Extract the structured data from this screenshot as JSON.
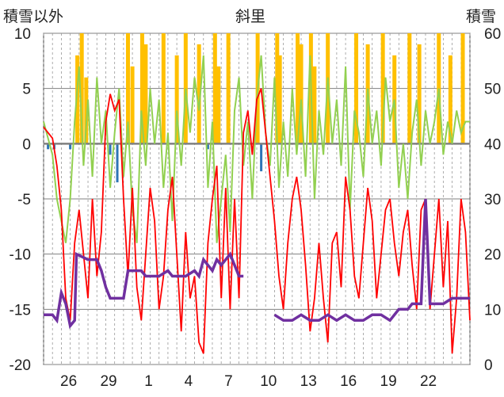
{
  "chart_data": {
    "type": "line",
    "title": "斜里",
    "ylabel_left": "積雪以外",
    "ylabel_right": "積雪",
    "ylim_left": [
      -20,
      10
    ],
    "ylim_right": [
      0,
      60
    ],
    "yticks_left": [
      "10",
      "5",
      "0",
      "-5",
      "-10",
      "-15",
      "-20"
    ],
    "yticks_right": [
      "60",
      "50",
      "40",
      "30",
      "20",
      "10",
      "0"
    ],
    "xtick_labels": [
      "26",
      "29",
      "1",
      "4",
      "7",
      "10",
      "13",
      "16",
      "19",
      "22"
    ],
    "x_range_days": [
      0,
      30
    ],
    "grid": true,
    "legend": "none",
    "colors": {
      "temperature": "#ff0000",
      "wind": "#92d050",
      "precipitation_yellow": "#ffc000",
      "precipitation_blue": "#2e75b6",
      "snow_depth": "#7030a0",
      "gridline": "#808080",
      "zero_line": "#808080"
    },
    "series": [
      {
        "axis": "left",
        "values_by_day": [
          [
            0,
            1.5
          ],
          [
            1,
            0.5
          ],
          [
            1.5,
            -2
          ],
          [
            2,
            -6
          ],
          [
            2.5,
            -14
          ],
          [
            3,
            -16
          ],
          [
            3.5,
            -9
          ],
          [
            4,
            -6
          ],
          [
            5,
            -14
          ],
          [
            5.5,
            -5
          ],
          [
            6,
            -12
          ],
          [
            6.5,
            -8
          ],
          [
            7,
            2
          ],
          [
            7.5,
            4.5
          ],
          [
            8,
            3
          ],
          [
            8.5,
            4
          ],
          [
            9,
            -5
          ],
          [
            9.5,
            -12
          ],
          [
            10,
            -4
          ],
          [
            10.5,
            -13
          ],
          [
            11,
            -16
          ],
          [
            11.5,
            -10
          ],
          [
            12,
            -4
          ],
          [
            12.5,
            -7
          ],
          [
            13,
            -15
          ],
          [
            13.5,
            -12
          ],
          [
            14,
            -6
          ],
          [
            14.5,
            -3
          ],
          [
            15,
            -10
          ],
          [
            15.5,
            -17
          ],
          [
            16,
            -8
          ],
          [
            16.5,
            -14
          ],
          [
            17,
            -12
          ],
          [
            17.5,
            -18
          ],
          [
            18,
            -19
          ],
          [
            18.5,
            -9
          ],
          [
            19,
            -5
          ],
          [
            19.5,
            -2
          ],
          [
            20,
            -14
          ],
          [
            20.5,
            -4
          ],
          [
            21,
            -15
          ],
          [
            21.5,
            -5
          ],
          [
            22,
            -14
          ],
          [
            22.5,
            1
          ],
          [
            23,
            3
          ],
          [
            23.5,
            -1
          ],
          [
            24,
            4
          ],
          [
            24.5,
            5
          ],
          [
            25,
            1
          ],
          [
            25.5,
            -3
          ],
          [
            26,
            -7
          ],
          [
            26.5,
            -12
          ],
          [
            27,
            -15
          ],
          [
            27.5,
            -9
          ],
          [
            28,
            -5
          ],
          [
            28.5,
            -3
          ],
          [
            29,
            -6
          ],
          [
            29.5,
            -11
          ],
          [
            30,
            -17
          ],
          [
            30.5,
            -14
          ],
          [
            31,
            -9
          ],
          [
            31.5,
            -14
          ],
          [
            32,
            -18
          ],
          [
            32.5,
            -9
          ],
          [
            33,
            -8
          ],
          [
            33.5,
            -13
          ],
          [
            34,
            -3
          ],
          [
            34.5,
            -6
          ],
          [
            35,
            -12
          ],
          [
            35.5,
            -14
          ],
          [
            36,
            -9
          ],
          [
            36.5,
            -4
          ],
          [
            37,
            -7
          ],
          [
            37.5,
            -14
          ],
          [
            38,
            -10
          ],
          [
            38.5,
            -6
          ],
          [
            39,
            -5
          ],
          [
            39.5,
            -9
          ],
          [
            40,
            -12
          ],
          [
            40.5,
            -8
          ],
          [
            41,
            -6
          ],
          [
            41.5,
            -11
          ],
          [
            42,
            -15
          ],
          [
            42.5,
            -6
          ],
          [
            43,
            -5
          ],
          [
            43.5,
            -15
          ],
          [
            44,
            -10
          ],
          [
            44.5,
            -5
          ],
          [
            45,
            -13
          ],
          [
            45.5,
            -7
          ],
          [
            46,
            -19
          ],
          [
            46.5,
            -14
          ],
          [
            47,
            -5
          ],
          [
            47.5,
            -8
          ],
          [
            48,
            -16
          ]
        ]
      },
      {
        "axis": "left",
        "values_by_day": [
          [
            0,
            2
          ],
          [
            1,
            -1
          ],
          [
            1.5,
            -5
          ],
          [
            2,
            -7
          ],
          [
            2.5,
            -9
          ],
          [
            3,
            -5
          ],
          [
            3.5,
            2
          ],
          [
            4,
            7
          ],
          [
            4.5,
            -2
          ],
          [
            5,
            4
          ],
          [
            5.5,
            -3
          ],
          [
            6,
            6
          ],
          [
            6.5,
            0
          ],
          [
            7,
            3
          ],
          [
            7.5,
            -4
          ],
          [
            8,
            1
          ],
          [
            8.5,
            5
          ],
          [
            9,
            -3
          ],
          [
            9.5,
            2
          ],
          [
            10,
            -6
          ],
          [
            10.5,
            -9
          ],
          [
            11,
            3
          ],
          [
            11.5,
            -2
          ],
          [
            12,
            5
          ],
          [
            12.5,
            0
          ],
          [
            13,
            4
          ],
          [
            13.5,
            -4
          ],
          [
            14,
            1
          ],
          [
            14.5,
            -7
          ],
          [
            15,
            3
          ],
          [
            15.5,
            -2
          ],
          [
            16,
            5
          ],
          [
            16.5,
            1
          ],
          [
            17,
            6
          ],
          [
            17.5,
            3
          ],
          [
            18,
            8
          ],
          [
            18.5,
            -4
          ],
          [
            19,
            2
          ],
          [
            19.5,
            -9
          ],
          [
            20,
            -5
          ],
          [
            20.5,
            -1
          ],
          [
            21,
            -8
          ],
          [
            21.5,
            3
          ],
          [
            22,
            6
          ],
          [
            22.5,
            -2
          ],
          [
            23,
            2
          ],
          [
            23.5,
            -5
          ],
          [
            24,
            4
          ],
          [
            24.5,
            8
          ],
          [
            25,
            1
          ],
          [
            25.5,
            -2
          ],
          [
            26,
            6
          ],
          [
            26.5,
            -4
          ],
          [
            27,
            2
          ],
          [
            27.5,
            -3
          ],
          [
            28,
            5
          ],
          [
            28.5,
            -1
          ],
          [
            29,
            4
          ],
          [
            29.5,
            -3
          ],
          [
            30,
            8
          ],
          [
            30.5,
            -5
          ],
          [
            31,
            3
          ],
          [
            31.5,
            -1
          ],
          [
            32,
            6
          ],
          [
            32.5,
            0
          ],
          [
            33,
            4
          ],
          [
            33.5,
            -2
          ],
          [
            34,
            7
          ],
          [
            34.5,
            -6
          ],
          [
            35,
            3
          ],
          [
            35.5,
            1
          ],
          [
            36,
            -3
          ],
          [
            36.5,
            5
          ],
          [
            37,
            0
          ],
          [
            37.5,
            3
          ],
          [
            38,
            -2
          ],
          [
            38.5,
            6
          ],
          [
            39,
            2
          ],
          [
            39.5,
            4
          ],
          [
            40,
            -4
          ],
          [
            40.5,
            0
          ],
          [
            41,
            -5
          ],
          [
            41.5,
            1
          ],
          [
            42,
            4
          ],
          [
            42.5,
            -2
          ],
          [
            43,
            3
          ],
          [
            43.5,
            0
          ],
          [
            44,
            2
          ],
          [
            44.5,
            5
          ],
          [
            45,
            -1
          ],
          [
            45.5,
            2
          ],
          [
            46,
            0
          ],
          [
            46.5,
            3
          ],
          [
            47,
            1
          ],
          [
            47.5,
            2
          ],
          [
            48,
            2
          ]
        ]
      },
      {
        "axis": "left",
        "bars_by_day": [
          [
            3.8,
            8
          ],
          [
            4.3,
            10
          ],
          [
            4.8,
            6
          ],
          [
            9.5,
            10
          ],
          [
            10,
            7
          ],
          [
            11.1,
            10
          ],
          [
            11.5,
            9
          ],
          [
            13.5,
            10
          ],
          [
            15,
            8
          ],
          [
            16,
            10
          ],
          [
            17.5,
            9
          ],
          [
            19.3,
            10
          ],
          [
            19.7,
            7
          ],
          [
            20.8,
            10
          ],
          [
            24.1,
            10
          ],
          [
            26.3,
            10
          ],
          [
            26.6,
            8
          ],
          [
            28.6,
            10
          ],
          [
            29,
            9
          ],
          [
            30.1,
            10
          ],
          [
            30.5,
            7
          ],
          [
            32,
            10
          ],
          [
            35.2,
            10
          ],
          [
            36.5,
            9
          ],
          [
            38.2,
            10
          ],
          [
            39.5,
            8
          ],
          [
            41.2,
            10
          ],
          [
            42.3,
            9
          ],
          [
            44.5,
            10
          ],
          [
            45.8,
            8
          ],
          [
            47.2,
            10
          ]
        ]
      },
      {
        "axis": "left",
        "bars_by_day": [
          [
            0.5,
            -0.5
          ],
          [
            1.2,
            -0.5
          ],
          [
            3.0,
            -0.5
          ],
          [
            7.5,
            -1
          ],
          [
            8.3,
            -3.5
          ],
          [
            18.5,
            -0.5
          ],
          [
            24.5,
            -2.5
          ]
        ]
      },
      {
        "axis": "right",
        "values_by_day": [
          [
            0,
            9
          ],
          [
            1,
            9
          ],
          [
            1.5,
            8
          ],
          [
            2,
            13
          ],
          [
            2.5,
            11
          ],
          [
            3,
            7
          ],
          [
            3.5,
            8
          ],
          [
            3.7,
            20
          ],
          [
            5,
            19
          ],
          [
            6,
            19
          ],
          [
            6.5,
            17
          ],
          [
            7,
            14
          ],
          [
            7.5,
            12
          ],
          [
            8,
            12
          ],
          [
            9,
            12
          ],
          [
            9.5,
            17
          ],
          [
            10,
            17
          ],
          [
            11,
            17
          ],
          [
            11.5,
            16
          ],
          [
            12,
            16
          ],
          [
            13,
            16
          ],
          [
            14,
            17
          ],
          [
            14.5,
            16
          ],
          [
            15,
            16
          ],
          [
            16,
            16
          ],
          [
            17,
            17
          ],
          [
            17.5,
            16
          ],
          [
            18,
            19
          ],
          [
            19,
            17
          ],
          [
            19.5,
            19
          ],
          [
            20,
            18
          ],
          [
            21,
            20
          ],
          [
            22,
            16
          ],
          [
            22.5,
            16
          ]
        ]
      },
      {
        "axis": "right",
        "values_by_day": [
          [
            26,
            9
          ],
          [
            27,
            8
          ],
          [
            28,
            8
          ],
          [
            29,
            9
          ],
          [
            30,
            8
          ],
          [
            31,
            8
          ],
          [
            32,
            9
          ],
          [
            33,
            8
          ],
          [
            34,
            9
          ],
          [
            35,
            8
          ],
          [
            36,
            8
          ],
          [
            37,
            9
          ],
          [
            38,
            9
          ],
          [
            39,
            8
          ],
          [
            40,
            10
          ],
          [
            41,
            10
          ],
          [
            41.5,
            11
          ],
          [
            42.5,
            11
          ],
          [
            43,
            30
          ],
          [
            43.5,
            11
          ],
          [
            44,
            11
          ],
          [
            45,
            11
          ],
          [
            46,
            12
          ],
          [
            47,
            12
          ],
          [
            48,
            12
          ]
        ]
      }
    ]
  }
}
